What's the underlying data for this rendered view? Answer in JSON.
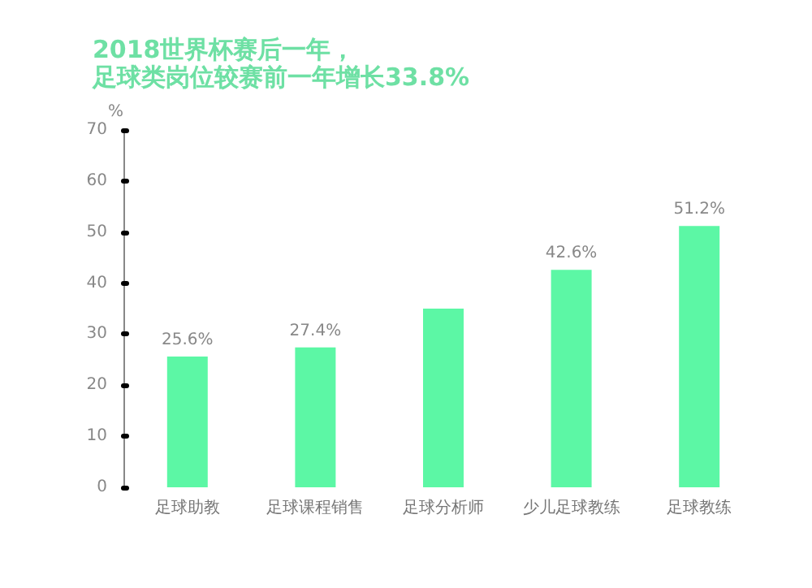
{
  "chart_data": {
    "type": "bar",
    "title": "2018世界杯赛后一年，",
    "subtitle": "足球类岗位较赛前一年增长33.8%",
    "ylabel": "%",
    "categories": [
      "足球助教",
      "足球课程销售",
      "足球分析师",
      "少儿足球教练",
      "足球教练"
    ],
    "values": [
      25.6,
      27.4,
      35,
      42.6,
      51.2
    ],
    "value_labels": [
      "25.6%",
      "27.4%",
      null,
      "42.6%",
      "51.2%"
    ],
    "color": "#5cf7a5",
    "ylim": [
      0,
      70
    ],
    "yticks": [
      0,
      10,
      20,
      30,
      40,
      50,
      60,
      70
    ],
    "grid": false
  }
}
